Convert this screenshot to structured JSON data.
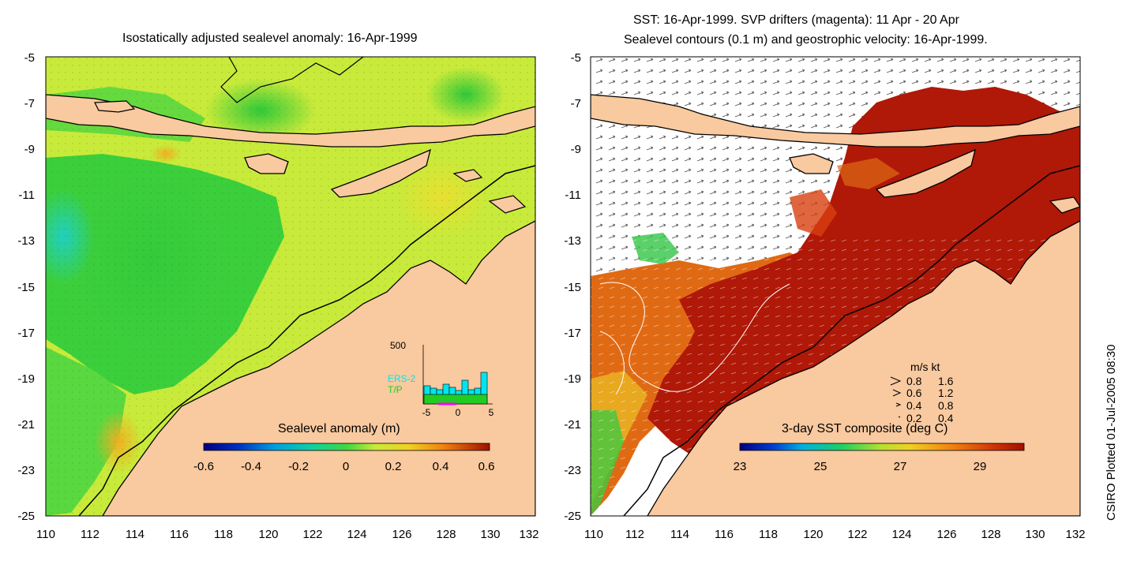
{
  "left_panel": {
    "title": "Isostatically adjusted sealevel anomaly: 16-Apr-1999",
    "colorbar_label": "Sealevel anomaly (m)",
    "colorbar_ticks": [
      "-0.6",
      "-0.4",
      "-0.2",
      "0",
      "0.2",
      "0.4",
      "0.6"
    ],
    "inset": {
      "ymax_label": "500",
      "ers_label": "ERS-2",
      "tp_label": "T/P",
      "x_ticks": [
        "-5",
        "0",
        "5"
      ],
      "ers_color": "#00e5ee",
      "tp_color": "#22cc22",
      "marker_color": "#ff00ff"
    }
  },
  "right_panel": {
    "title_line1": "SST: 16-Apr-1999. SVP drifters (magenta): 11 Apr - 20 Apr",
    "title_line2": "Sealevel contours (0.1 m) and geostrophic velocity: 16-Apr-1999.",
    "colorbar_label": "3-day SST composite (deg C)",
    "colorbar_ticks": [
      "23",
      "25",
      "27",
      "29"
    ],
    "velocity_legend": {
      "header": "m/s  kt",
      "rows": [
        {
          "ms": "0.8",
          "kt": "1.6"
        },
        {
          "ms": "0.6",
          "kt": "1.2"
        },
        {
          "ms": "0.4",
          "kt": "0.8"
        },
        {
          "ms": "0.2",
          "kt": "0.4"
        }
      ]
    }
  },
  "axes": {
    "y_ticks": [
      "-5",
      "-7",
      "-9",
      "-11",
      "-13",
      "-15",
      "-17",
      "-19",
      "-21",
      "-23",
      "-25"
    ],
    "x_ticks": [
      "110",
      "112",
      "114",
      "116",
      "118",
      "120",
      "122",
      "124",
      "126",
      "128",
      "130",
      "132"
    ]
  },
  "credit": "CSIRO Plotted 01-Jul-2005 08:30",
  "colors": {
    "land": "#f9c99f",
    "ssh_background": "#c8ea3a",
    "ssh_low": "#2fcf3a",
    "sst_warm": "#b01808",
    "sst_mid": "#e06010",
    "no_data": "#ffffff"
  }
}
